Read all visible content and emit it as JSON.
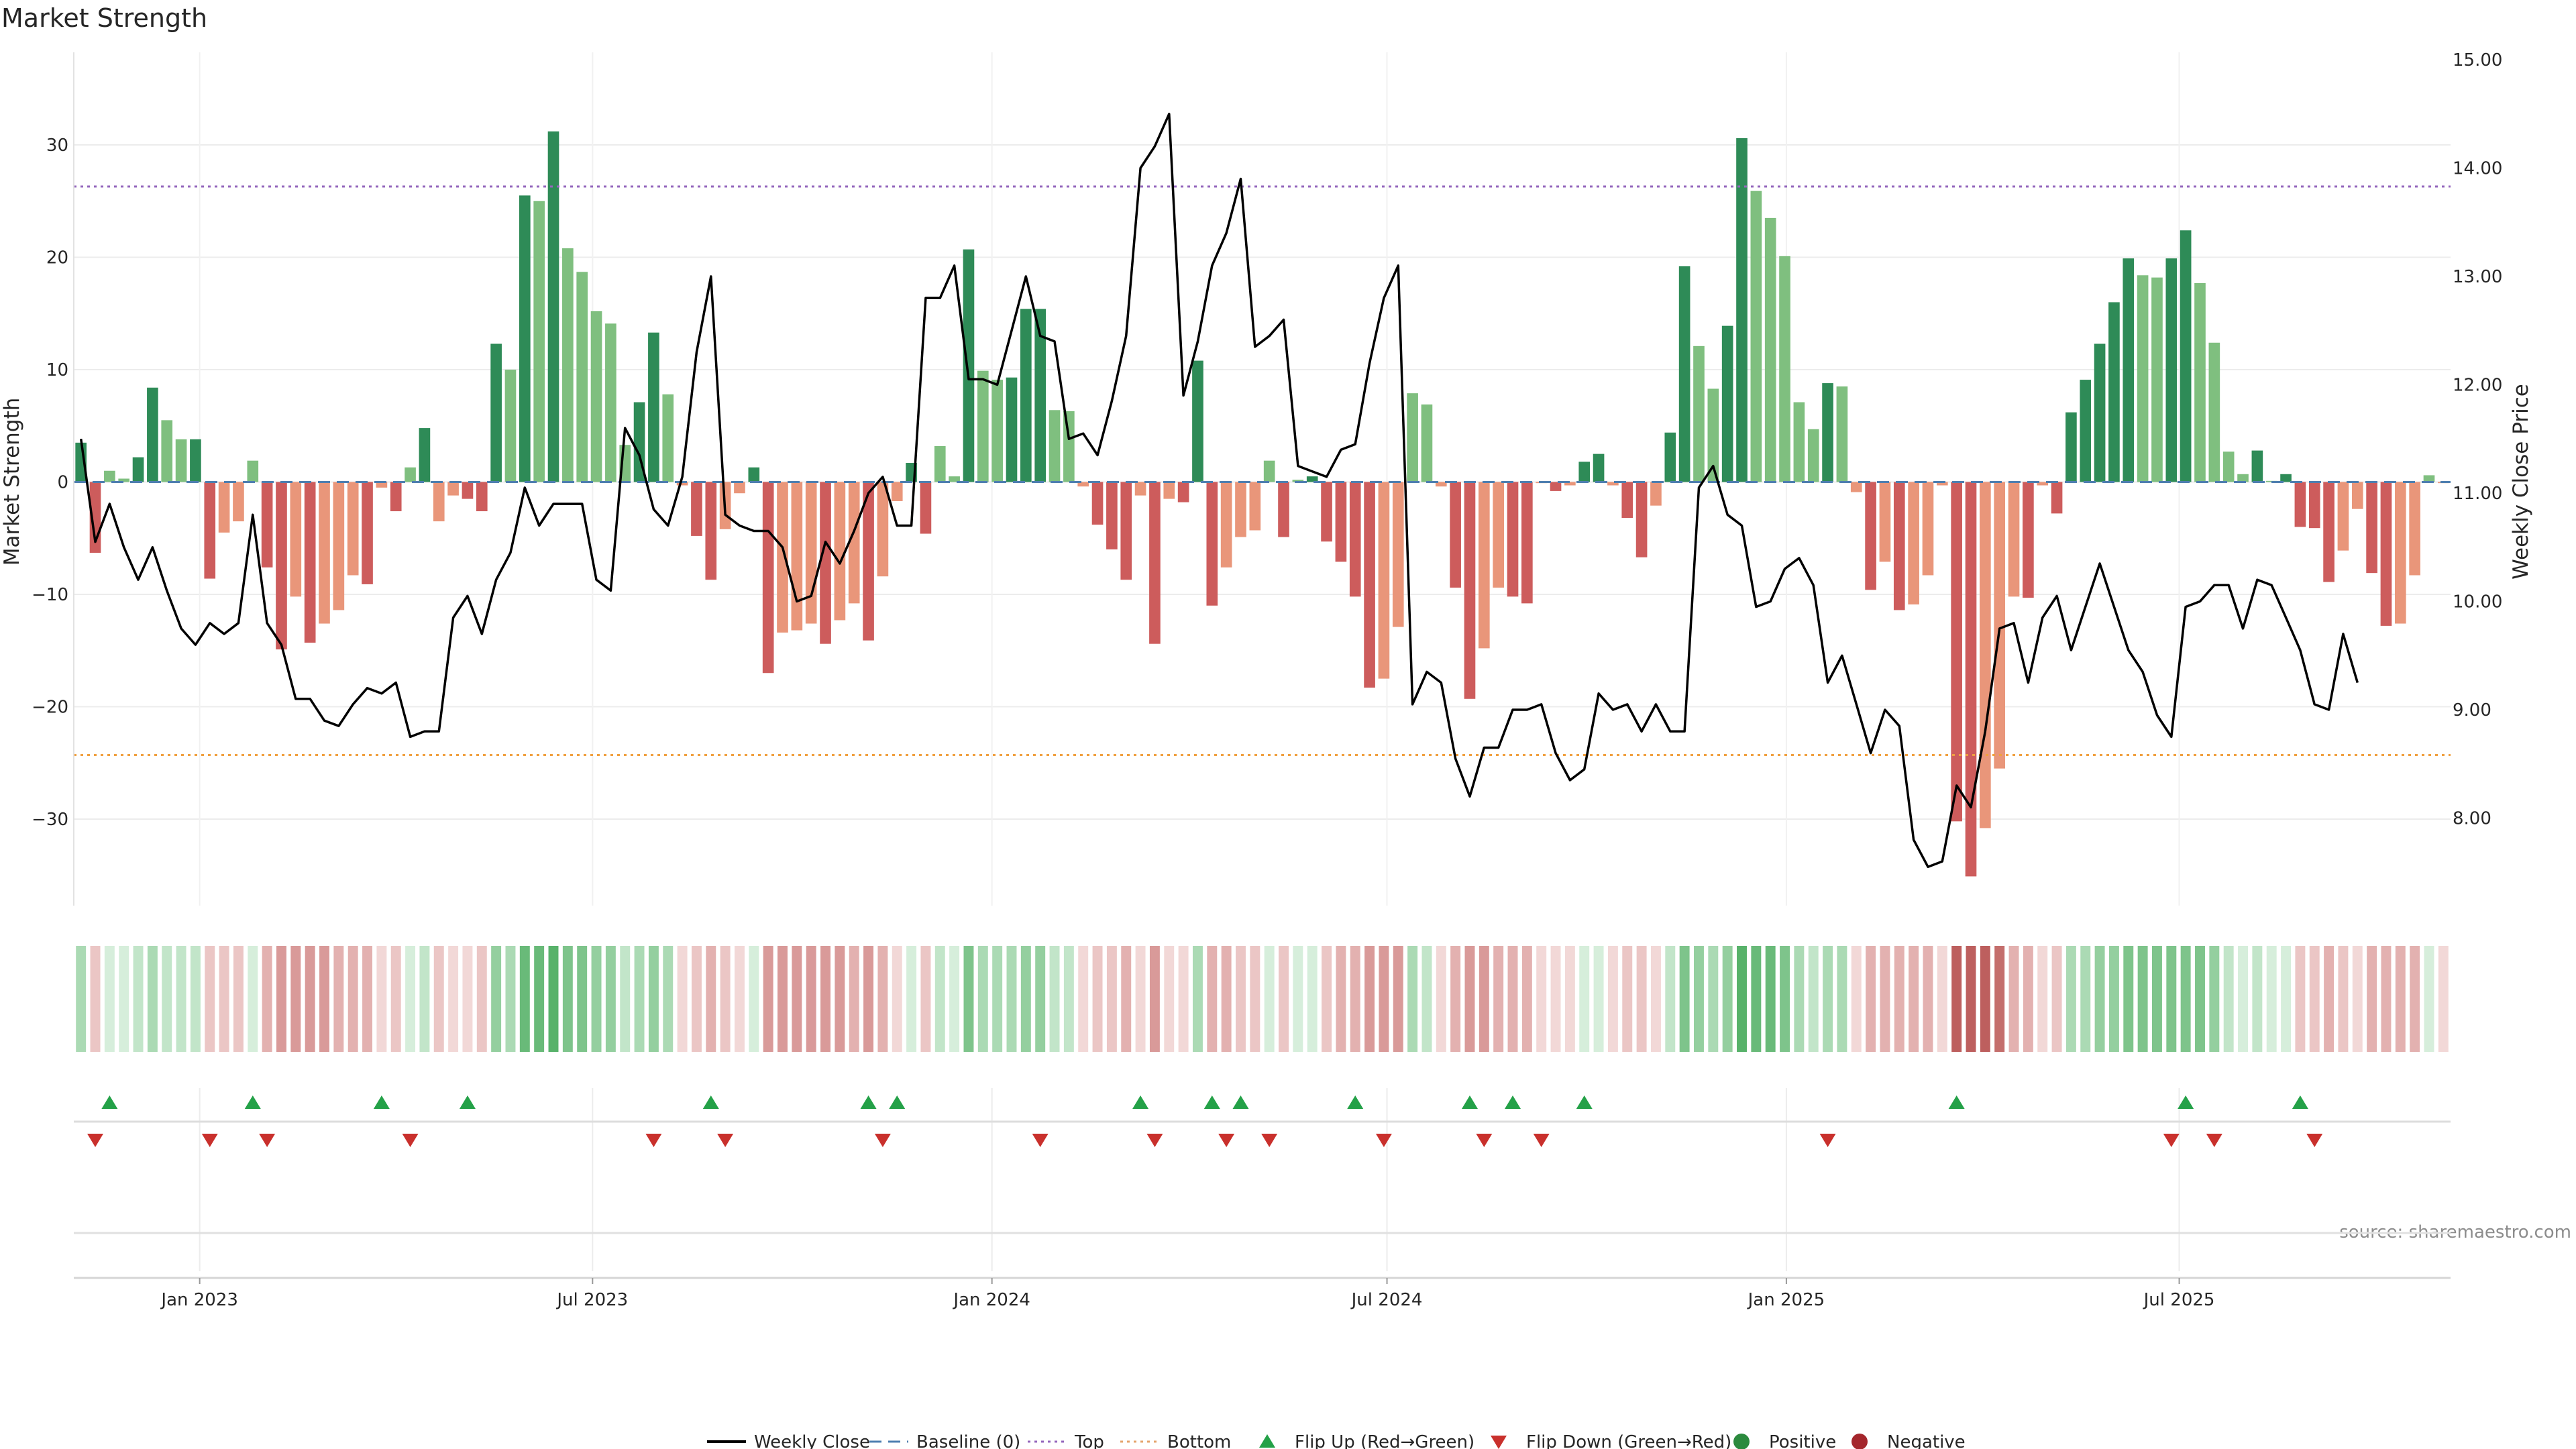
{
  "chart_data": {
    "type": "bar",
    "title": "Market Strength",
    "ylabel_left": "Market Strength",
    "ylabel_right": "Weekly Close Price",
    "ylim_left": [
      -38.5,
      38
    ],
    "ylim_right": [
      7.2,
      15.0
    ],
    "yticks_left": [
      -30,
      -20,
      -10,
      0,
      10,
      20,
      30
    ],
    "yticks_right": [
      8.0,
      9.0,
      10.0,
      11.0,
      12.0,
      13.0,
      14.0,
      15.0
    ],
    "ytick_labels_left": [
      "−30",
      "−20",
      "−10",
      "0",
      "10",
      "20",
      "30"
    ],
    "ytick_labels_right": [
      "8.00",
      "9.00",
      "10.00",
      "11.00",
      "12.00",
      "13.00",
      "14.00",
      "15.00"
    ],
    "x_start": "2022-11-04",
    "x_end": "2025-11-03",
    "x_ticks": [
      {
        "date": "2023-01-01",
        "label": "Jan 2023"
      },
      {
        "date": "2023-07-01",
        "label": "Jul 2023"
      },
      {
        "date": "2024-01-01",
        "label": "Jan 2024"
      },
      {
        "date": "2024-07-01",
        "label": "Jul 2024"
      },
      {
        "date": "2025-01-01",
        "label": "Jan 2025"
      },
      {
        "date": "2025-07-01",
        "label": "Jul 2025"
      }
    ],
    "top_level": 26.3,
    "bottom_level": -24.3,
    "baseline": 0,
    "strength": [
      3.5,
      -6.3,
      1,
      0.3,
      2.2,
      8.4,
      5.5,
      3.8,
      3.8,
      -8.6,
      -4.5,
      -3.5,
      1.9,
      -7.6,
      -14.9,
      -10.2,
      -14.3,
      -12.6,
      -11.4,
      -8.3,
      -9.1,
      -0.5,
      -2.6,
      1.3,
      4.8,
      -3.5,
      -1.2,
      -1.5,
      -2.6,
      12.3,
      10,
      25.5,
      25,
      31.2,
      20.8,
      18.7,
      15.2,
      14.1,
      3.3,
      7.1,
      13.3,
      7.8,
      -0.3,
      -4.8,
      -8.7,
      -4.2,
      -1,
      1.3,
      -17,
      -13.4,
      -13.2,
      -12.6,
      -14.4,
      -12.3,
      -10.8,
      -14.1,
      -8.4,
      -1.7,
      1.7,
      -4.6,
      3.2,
      0.5,
      20.7,
      9.9,
      9.1,
      9.3,
      15.4,
      15.4,
      6.4,
      6.3,
      -0.4,
      -3.8,
      -6,
      -8.7,
      -1.2,
      -14.4,
      -1.5,
      -1.8,
      10.8,
      -11,
      -7.6,
      -4.9,
      -4.3,
      1.9,
      -4.9,
      0.2,
      0.5,
      -5.3,
      -7.1,
      -10.2,
      -18.3,
      -17.5,
      -12.9,
      7.9,
      6.9,
      -0.4,
      -9.4,
      -19.3,
      -14.8,
      -9.4,
      -10.2,
      -10.8,
      -0.1,
      -0.8,
      -0.3,
      1.8,
      2.5,
      -0.3,
      -3.2,
      -6.7,
      -2.1,
      4.4,
      19.2,
      12.1,
      8.3,
      13.9,
      30.6,
      25.9,
      23.5,
      20.1,
      7.1,
      4.7,
      8.8,
      8.5,
      -0.9,
      -9.6,
      -7.1,
      -11.4,
      -10.9,
      -8.3,
      -0.3,
      -30.2,
      -35.1,
      -30.8,
      -25.5,
      -10.2,
      -10.3,
      -0.3,
      -2.8,
      6.2,
      9.1,
      12.3,
      16,
      19.9,
      18.4,
      18.2,
      19.9,
      22.4,
      17.7,
      12.4,
      2.7,
      0.7,
      2.8,
      0.1,
      0.7,
      -4,
      -4.1,
      -8.9,
      -6.1,
      -2.4,
      -8.1,
      -12.8,
      -12.6,
      -8.3,
      0.6,
      -0.1
    ],
    "weekly_close": [
      11.5,
      10.55,
      10.9,
      10.5,
      10.2,
      10.5,
      10.1,
      9.75,
      9.6,
      9.8,
      9.7,
      9.8,
      10.8,
      9.8,
      9.6,
      9.1,
      9.1,
      8.9,
      8.85,
      9.05,
      9.2,
      9.15,
      9.25,
      8.75,
      8.8,
      8.8,
      9.85,
      10.05,
      9.7,
      10.2,
      10.45,
      11.05,
      10.7,
      10.9,
      10.9,
      10.9,
      10.2,
      10.1,
      11.6,
      11.35,
      10.85,
      10.7,
      11.15,
      12.3,
      13.0,
      10.8,
      10.7,
      10.65,
      10.65,
      10.5,
      10.0,
      10.05,
      10.55,
      10.35,
      10.65,
      11.0,
      11.15,
      10.7,
      10.7,
      12.8,
      12.8,
      13.1,
      12.05,
      12.05,
      12.0,
      12.5,
      13.0,
      12.45,
      12.4,
      11.5,
      11.55,
      11.35,
      11.85,
      12.45,
      14.0,
      14.2,
      14.5,
      11.9,
      12.4,
      13.1,
      13.4,
      13.9,
      12.35,
      12.45,
      12.6,
      11.25,
      11.2,
      11.15,
      11.4,
      11.45,
      12.2,
      12.8,
      13.1,
      9.05,
      9.35,
      9.25,
      8.55,
      8.2,
      8.65,
      8.65,
      9.0,
      9.0,
      9.05,
      8.6,
      8.35,
      8.45,
      9.15,
      9.0,
      9.05,
      8.8,
      9.05,
      8.8,
      8.8,
      11.05,
      11.25,
      10.8,
      10.7,
      9.95,
      10.0,
      10.3,
      10.4,
      10.15,
      9.25,
      9.5,
      9.05,
      8.6,
      9.0,
      8.85,
      7.8,
      7.55,
      7.6,
      8.3,
      8.1,
      8.8,
      9.75,
      9.8,
      9.25,
      9.85,
      10.05,
      9.55,
      9.95,
      10.35,
      9.95,
      9.55,
      9.35,
      8.95,
      8.75,
      9.95,
      10.0,
      10.15,
      10.15,
      9.75,
      10.2,
      10.15,
      9.85,
      9.55,
      9.05,
      9.0,
      9.7,
      9.25
    ],
    "heat_strip": [
      3,
      -2,
      1,
      1,
      2,
      3,
      2,
      2,
      2,
      -2,
      -2,
      -2,
      1,
      -3,
      -4,
      -4,
      -4,
      -4,
      -3,
      -3,
      -3,
      -1,
      -2,
      1,
      2,
      -2,
      -1,
      -1,
      -2,
      4,
      3,
      6,
      6,
      7,
      5,
      5,
      4,
      4,
      2,
      3,
      4,
      3,
      -1,
      -2,
      -3,
      -2,
      -1,
      1,
      -4,
      -4,
      -4,
      -4,
      -4,
      -4,
      -3,
      -4,
      -3,
      -1,
      1,
      -2,
      2,
      1,
      5,
      3,
      3,
      3,
      4,
      4,
      2,
      2,
      -1,
      -2,
      -2,
      -3,
      -1,
      -4,
      -1,
      -1,
      3,
      -3,
      -3,
      -2,
      -2,
      1,
      -2,
      1,
      1,
      -2,
      -3,
      -3,
      -4,
      -4,
      -4,
      3,
      2,
      -1,
      -3,
      -4,
      -4,
      -3,
      -3,
      -3,
      -1,
      -1,
      -1,
      1,
      1,
      -1,
      -2,
      -2,
      -1,
      2,
      5,
      4,
      3,
      4,
      7,
      6,
      6,
      5,
      3,
      2,
      3,
      3,
      -1,
      -3,
      -3,
      -3,
      -3,
      -3,
      -1,
      -7,
      -7,
      -7,
      -6,
      -3,
      -3,
      -1,
      -2,
      3,
      3,
      4,
      4,
      5,
      5,
      5,
      5,
      5,
      5,
      4,
      2,
      1,
      2,
      1,
      1,
      -2,
      -2,
      -3,
      -2,
      -1,
      -3,
      -3,
      -3,
      -3,
      1,
      -1
    ],
    "flip_up_indices": [
      2,
      12,
      21,
      27,
      44,
      55,
      57,
      74,
      79,
      81,
      89,
      97,
      100,
      105,
      131,
      147,
      155
    ],
    "flip_down_indices": [
      1,
      9,
      13,
      23,
      40,
      45,
      56,
      67,
      75,
      80,
      83,
      91,
      98,
      102,
      122,
      146,
      149,
      156
    ],
    "legend": [
      {
        "label": "Weekly Close",
        "swatch": "line",
        "color": "#000000"
      },
      {
        "label": "Baseline (0)",
        "swatch": "dash",
        "color": "#4f7fb0"
      },
      {
        "label": "Top",
        "swatch": "dot",
        "color": "#9467bd"
      },
      {
        "label": "Bottom",
        "swatch": "dot",
        "color": "#e5a56e"
      },
      {
        "label": "Flip Up (Red→Green)",
        "swatch": "triangle-up",
        "color": "#24a148"
      },
      {
        "label": "Flip Down (Green→Red)",
        "swatch": "triangle-down",
        "color": "#c9302c"
      },
      {
        "label": "Positive",
        "swatch": "circle",
        "color": "#2b8a3e"
      },
      {
        "label": "Negative",
        "swatch": "circle",
        "color": "#a4262c"
      }
    ],
    "legend_position": "bottom-center",
    "grid": true,
    "source": "source: sharemaestro.com",
    "colors": {
      "pos_strong": "#2e8b57",
      "pos_light": "#7fbf7f",
      "neg_strong": "#cd5c5c",
      "neg_light": "#e9967a",
      "line": "#000000",
      "top": "#9467bd",
      "bottom": "#f0a040",
      "baseline": "#4f7fb0",
      "flip_up": "#24a148",
      "flip_down": "#c9302c"
    }
  }
}
